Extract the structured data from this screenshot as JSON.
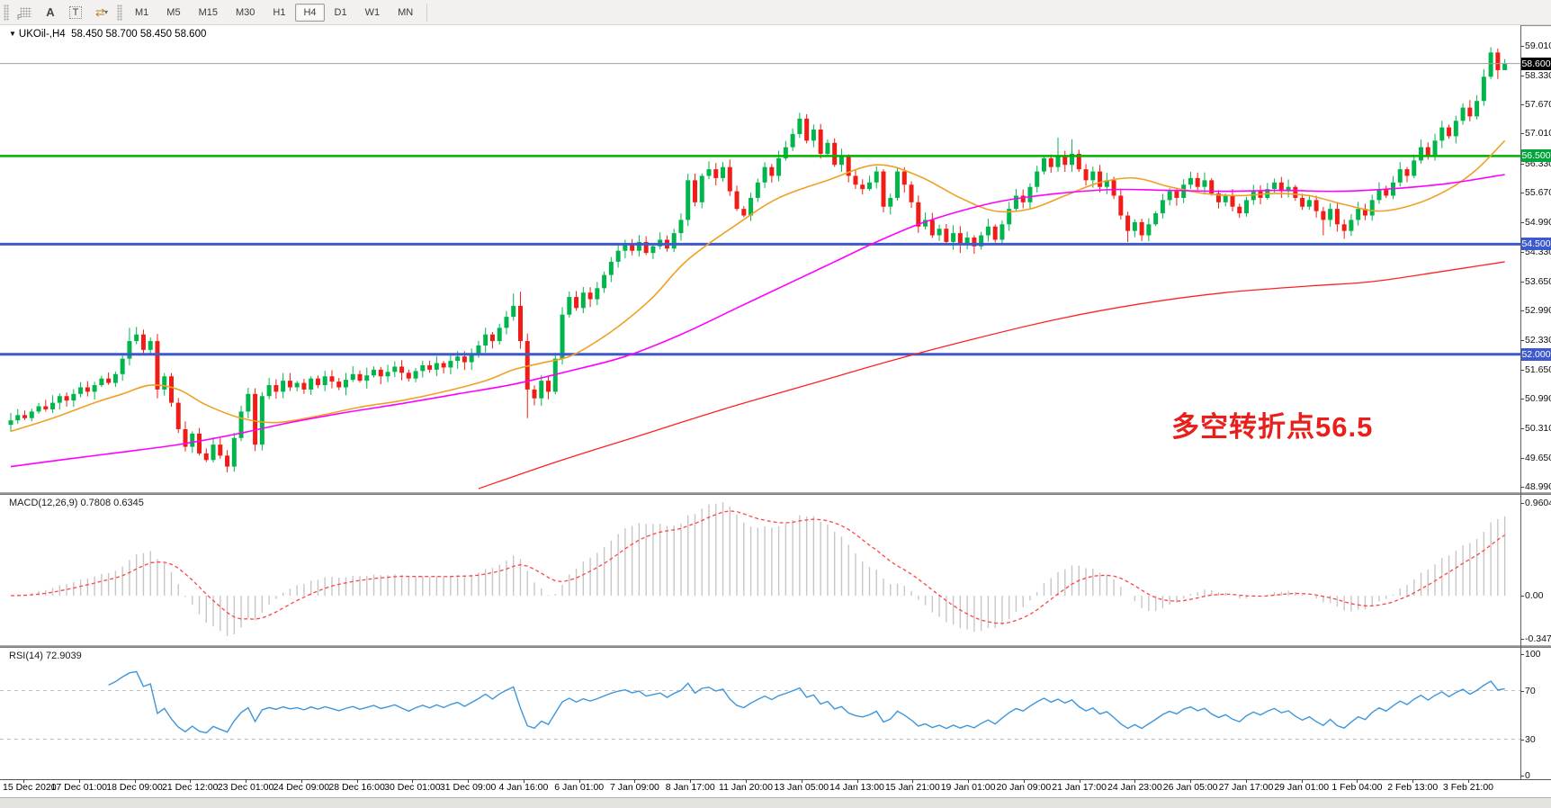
{
  "toolbar": {
    "icon_labels": {
      "f": "F",
      "a": "A",
      "t": "T",
      "cursor": "⇄",
      "caret": "▾"
    },
    "timeframes": [
      "M1",
      "M5",
      "M15",
      "M30",
      "H1",
      "H4",
      "D1",
      "W1",
      "MN"
    ],
    "active_timeframe": "H4"
  },
  "chart_header": {
    "dropdown_icon": "▼",
    "symbol": "UKOil-,H4",
    "ohlc": "58.450 58.700 58.450 58.600"
  },
  "annotation": {
    "text": "多空转折点56.5",
    "color": "#e81f1b"
  },
  "macd_panel": {
    "label": "MACD(12,26,9) 0.7808 0.6345"
  },
  "rsi_panel": {
    "label": "RSI(14) 72.9039"
  },
  "chart_data": {
    "type": "candlestick",
    "symbol": "UKOil-",
    "timeframe": "H4",
    "current_bar": {
      "open": 58.45,
      "high": 58.7,
      "low": 58.45,
      "close": 58.6
    },
    "price_range": {
      "min": 48.87,
      "max": 59.47
    },
    "price_axis_ticks": [
      "59.010",
      "58.330",
      "57.670",
      "57.010",
      "56.330",
      "55.670",
      "54.990",
      "54.330",
      "53.650",
      "52.990",
      "52.330",
      "51.650",
      "50.990",
      "50.310",
      "49.650",
      "48.990"
    ],
    "time_labels": [
      "15 Dec 2020",
      "17 Dec 01:00",
      "18 Dec 09:00",
      "21 Dec 12:00",
      "23 Dec 01:00",
      "24 Dec 09:00",
      "28 Dec 16:00",
      "30 Dec 01:00",
      "31 Dec 09:00",
      "4 Jan 16:00",
      "6 Jan 01:00",
      "7 Jan 09:00",
      "8 Jan 17:00",
      "11 Jan 20:00",
      "13 Jan 05:00",
      "14 Jan 13:00",
      "15 Jan 21:00",
      "19 Jan 01:00",
      "20 Jan 09:00",
      "21 Jan 17:00",
      "24 Jan 23:00",
      "26 Jan 05:00",
      "27 Jan 17:00",
      "29 Jan 01:00",
      "1 Feb 04:00",
      "2 Feb 13:00",
      "3 Feb 21:00"
    ],
    "colors": {
      "bull": "#00b64c",
      "bear": "#f01d16",
      "ma_fast": "#efa126",
      "ma_medium": "#ff00ff",
      "ma_slow": "#ff2222",
      "hline_green": "#00b200",
      "hline_blue": "#3c59cd",
      "current_line": "#9aa0a6",
      "macd_bar": "#c6c6c6",
      "macd_signal": "#ff4545",
      "rsi_line": "#3d96db",
      "rsi_level": "#c0c0c0"
    },
    "first_open": 50.4,
    "closes": [
      50.5,
      50.62,
      50.55,
      50.7,
      50.82,
      50.75,
      50.9,
      51.05,
      50.95,
      51.1,
      51.25,
      51.15,
      51.3,
      51.45,
      51.35,
      51.55,
      51.9,
      52.3,
      52.45,
      52.1,
      52.3,
      51.2,
      51.5,
      50.9,
      50.3,
      49.9,
      50.2,
      49.75,
      49.6,
      49.95,
      49.7,
      49.45,
      50.1,
      50.7,
      51.1,
      49.95,
      51.05,
      51.3,
      51.15,
      51.4,
      51.25,
      51.35,
      51.2,
      51.45,
      51.3,
      51.5,
      51.38,
      51.25,
      51.42,
      51.55,
      51.4,
      51.52,
      51.65,
      51.5,
      51.6,
      51.72,
      51.58,
      51.45,
      51.62,
      51.75,
      51.65,
      51.8,
      51.7,
      51.85,
      51.95,
      51.82,
      52.0,
      52.2,
      52.45,
      52.3,
      52.6,
      52.85,
      53.1,
      52.3,
      51.2,
      51.0,
      51.4,
      51.15,
      51.9,
      52.9,
      53.3,
      53.05,
      53.4,
      53.25,
      53.5,
      53.8,
      54.1,
      54.35,
      54.5,
      54.35,
      54.55,
      54.3,
      54.45,
      54.6,
      54.4,
      54.75,
      55.05,
      55.95,
      55.45,
      56.05,
      56.2,
      56.0,
      56.25,
      55.7,
      55.3,
      55.15,
      55.55,
      55.9,
      56.25,
      56.05,
      56.45,
      56.7,
      57.0,
      57.35,
      56.85,
      57.1,
      56.55,
      56.8,
      56.3,
      56.5,
      56.05,
      55.85,
      55.75,
      55.9,
      56.15,
      55.35,
      55.55,
      56.15,
      55.85,
      55.45,
      54.9,
      55.05,
      54.7,
      54.85,
      54.55,
      54.75,
      54.5,
      54.65,
      54.45,
      54.7,
      54.9,
      54.6,
      54.95,
      55.3,
      55.6,
      55.45,
      55.8,
      56.15,
      56.45,
      56.25,
      56.5,
      56.3,
      56.55,
      56.2,
      55.95,
      56.15,
      55.8,
      55.95,
      55.6,
      55.15,
      54.8,
      55.0,
      54.7,
      54.95,
      55.2,
      55.5,
      55.7,
      55.55,
      55.85,
      56.0,
      55.8,
      55.95,
      55.65,
      55.45,
      55.6,
      55.35,
      55.2,
      55.5,
      55.7,
      55.55,
      55.75,
      55.9,
      55.7,
      55.8,
      55.55,
      55.35,
      55.5,
      55.25,
      55.05,
      55.3,
      54.95,
      54.8,
      55.05,
      55.3,
      55.15,
      55.5,
      55.75,
      55.6,
      55.9,
      56.2,
      56.05,
      56.4,
      56.7,
      56.5,
      56.85,
      57.15,
      56.95,
      57.3,
      57.6,
      57.4,
      57.75,
      58.3,
      58.85,
      58.45,
      58.6
    ],
    "wick_overrides": {
      "17": {
        "h": 52.6
      },
      "18": {
        "h": 52.62
      },
      "21": {
        "l": 51.0
      },
      "31": {
        "l": 49.32
      },
      "35": {
        "l": 49.8
      },
      "72": {
        "h": 53.38
      },
      "73": {
        "h": 53.42
      },
      "74": {
        "l": 50.55
      },
      "97": {
        "h": 56.1
      },
      "113": {
        "h": 57.48
      },
      "114": {
        "h": 57.45
      },
      "136": {
        "l": 54.3
      },
      "138": {
        "l": 54.28
      },
      "150": {
        "h": 56.92
      },
      "152": {
        "h": 56.88
      },
      "160": {
        "l": 54.55
      },
      "188": {
        "l": 54.7
      },
      "191": {
        "l": 54.62
      },
      "212": {
        "h": 58.97
      },
      "213": {
        "l": 58.25
      },
      "214": {
        "h": 58.7,
        "l": 58.45
      }
    },
    "hlines": [
      {
        "price": 58.6,
        "color": "#9aa0a6",
        "width": 1,
        "name": "current-price-line"
      },
      {
        "price": 56.5,
        "color": "#00b200",
        "width": 2.5,
        "name": "green-resistance-line"
      },
      {
        "price": 54.5,
        "color": "#3c59cd",
        "width": 3,
        "name": "blue-support-line-54500"
      },
      {
        "price": 52.0,
        "color": "#3c59cd",
        "width": 3,
        "name": "blue-support-line-52000"
      }
    ],
    "price_tags": [
      {
        "label": "58.600",
        "price": 58.6,
        "bg": "#000000"
      },
      {
        "label": "56.500",
        "price": 56.5,
        "bg": "#00a53c"
      },
      {
        "label": "54.500",
        "price": 54.5,
        "bg": "#3c59cd"
      },
      {
        "label": "52.000",
        "price": 52.0,
        "bg": "#3c59cd"
      }
    ],
    "moving_averages": [
      {
        "name": "fast-ma-orange",
        "color": "#efa126",
        "width": 1.6,
        "anchors": [
          [
            0,
            50.25
          ],
          [
            6,
            50.55
          ],
          [
            12,
            50.9
          ],
          [
            16,
            51.1
          ],
          [
            20,
            51.3
          ],
          [
            24,
            51.2
          ],
          [
            28,
            50.85
          ],
          [
            33,
            50.55
          ],
          [
            38,
            50.45
          ],
          [
            44,
            50.6
          ],
          [
            50,
            50.8
          ],
          [
            56,
            50.95
          ],
          [
            62,
            51.15
          ],
          [
            68,
            51.4
          ],
          [
            72,
            51.65
          ],
          [
            76,
            51.8
          ],
          [
            80,
            51.95
          ],
          [
            84,
            52.3
          ],
          [
            88,
            52.75
          ],
          [
            92,
            53.3
          ],
          [
            97,
            54.15
          ],
          [
            104,
            54.95
          ],
          [
            110,
            55.55
          ],
          [
            117,
            55.95
          ],
          [
            124,
            56.3
          ],
          [
            130,
            56.05
          ],
          [
            136,
            55.55
          ],
          [
            141,
            55.25
          ],
          [
            146,
            55.3
          ],
          [
            151,
            55.6
          ],
          [
            156,
            55.9
          ],
          [
            161,
            56.0
          ],
          [
            166,
            55.8
          ],
          [
            171,
            55.65
          ],
          [
            176,
            55.6
          ],
          [
            181,
            55.65
          ],
          [
            186,
            55.6
          ],
          [
            191,
            55.4
          ],
          [
            196,
            55.25
          ],
          [
            201,
            55.4
          ],
          [
            206,
            55.75
          ],
          [
            210,
            56.2
          ],
          [
            214,
            56.85
          ]
        ]
      },
      {
        "name": "medium-ma-magenta",
        "color": "#ff00ff",
        "width": 1.6,
        "anchors": [
          [
            0,
            49.45
          ],
          [
            8,
            49.62
          ],
          [
            16,
            49.78
          ],
          [
            24,
            49.95
          ],
          [
            32,
            50.18
          ],
          [
            40,
            50.45
          ],
          [
            48,
            50.68
          ],
          [
            56,
            50.88
          ],
          [
            64,
            51.1
          ],
          [
            72,
            51.32
          ],
          [
            80,
            51.62
          ],
          [
            88,
            51.95
          ],
          [
            96,
            52.45
          ],
          [
            104,
            53.05
          ],
          [
            112,
            53.65
          ],
          [
            118,
            54.1
          ],
          [
            124,
            54.55
          ],
          [
            130,
            54.95
          ],
          [
            136,
            55.25
          ],
          [
            142,
            55.48
          ],
          [
            150,
            55.65
          ],
          [
            158,
            55.74
          ],
          [
            166,
            55.72
          ],
          [
            174,
            55.7
          ],
          [
            182,
            55.72
          ],
          [
            190,
            55.7
          ],
          [
            198,
            55.76
          ],
          [
            206,
            55.88
          ],
          [
            214,
            56.08
          ]
        ]
      },
      {
        "name": "slow-ma-red",
        "color": "#ff2222",
        "width": 1.3,
        "anchors": [
          [
            67,
            48.95
          ],
          [
            78,
            49.55
          ],
          [
            90,
            50.15
          ],
          [
            102,
            50.75
          ],
          [
            114,
            51.3
          ],
          [
            126,
            51.85
          ],
          [
            138,
            52.35
          ],
          [
            150,
            52.8
          ],
          [
            162,
            53.15
          ],
          [
            174,
            53.4
          ],
          [
            186,
            53.55
          ],
          [
            195,
            53.65
          ],
          [
            205,
            53.88
          ],
          [
            214,
            54.1
          ]
        ]
      }
    ],
    "macd": {
      "params": "12,26,9",
      "value_main": "0.7808",
      "value_signal": "0.6345",
      "axis_labels": [
        "0.9604",
        "0.00",
        "-0.3473"
      ]
    },
    "rsi": {
      "period": 14,
      "value": "72.9039",
      "axis_labels": [
        "100",
        "70",
        "30",
        "0"
      ],
      "levels": [
        70,
        30
      ]
    }
  }
}
